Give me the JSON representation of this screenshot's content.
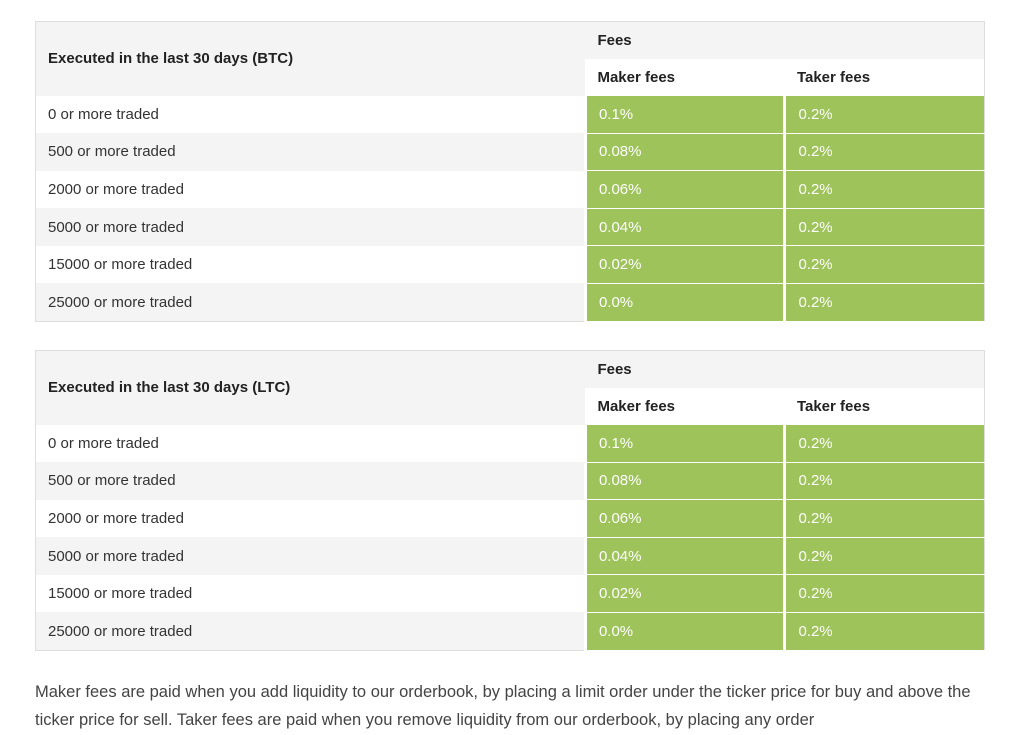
{
  "tables": [
    {
      "id": "btc",
      "row_header": "Executed in the last 30 days (BTC)",
      "fees_header": "Fees",
      "maker_header": "Maker fees",
      "taker_header": "Taker fees",
      "rows": [
        {
          "label": "0 or more traded",
          "maker": "0.1%",
          "taker": "0.2%"
        },
        {
          "label": "500 or more traded",
          "maker": "0.08%",
          "taker": "0.2%"
        },
        {
          "label": "2000 or more traded",
          "maker": "0.06%",
          "taker": "0.2%"
        },
        {
          "label": "5000 or more traded",
          "maker": "0.04%",
          "taker": "0.2%"
        },
        {
          "label": "15000 or more traded",
          "maker": "0.02%",
          "taker": "0.2%"
        },
        {
          "label": "25000 or more traded",
          "maker": "0.0%",
          "taker": "0.2%"
        }
      ]
    },
    {
      "id": "ltc",
      "row_header": "Executed in the last 30 days (LTC)",
      "fees_header": "Fees",
      "maker_header": "Maker fees",
      "taker_header": "Taker fees",
      "rows": [
        {
          "label": "0 or more traded",
          "maker": "0.1%",
          "taker": "0.2%"
        },
        {
          "label": "500 or more traded",
          "maker": "0.08%",
          "taker": "0.2%"
        },
        {
          "label": "2000 or more traded",
          "maker": "0.06%",
          "taker": "0.2%"
        },
        {
          "label": "5000 or more traded",
          "maker": "0.04%",
          "taker": "0.2%"
        },
        {
          "label": "15000 or more traded",
          "maker": "0.02%",
          "taker": "0.2%"
        },
        {
          "label": "25000 or more traded",
          "maker": "0.0%",
          "taker": "0.2%"
        }
      ]
    }
  ],
  "note": "Maker fees are paid when you add liquidity to our orderbook, by placing a limit order under the ticker price for buy and above the ticker price for sell. Taker fees are paid when you remove liquidity from our orderbook, by placing any order",
  "colors": {
    "fee_cell": "#9dc35a",
    "header_bg": "#f4f4f4",
    "border": "#dddddd"
  }
}
